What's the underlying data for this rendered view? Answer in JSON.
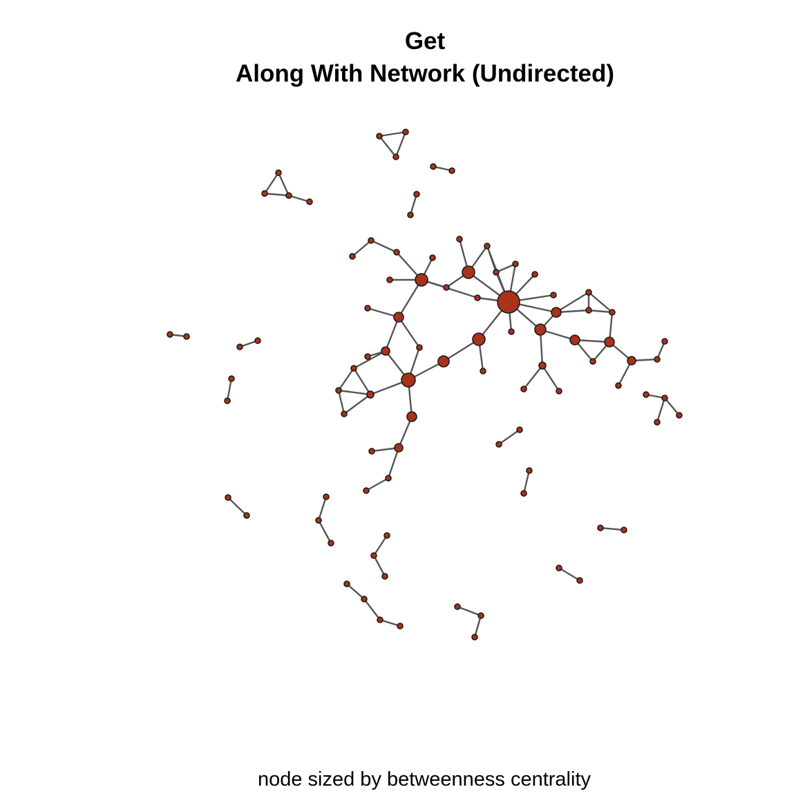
{
  "title": {
    "line1": "Get",
    "line2": "Along With Network (Undirected)"
  },
  "caption": "node sized by betweenness centrality",
  "colors": {
    "node_fill": "#a8321a",
    "node_stroke": "#1a1a1a",
    "edge": "#555555"
  },
  "network": {
    "type": "undirected graph",
    "node_size_metric": "betweenness centrality"
  }
}
